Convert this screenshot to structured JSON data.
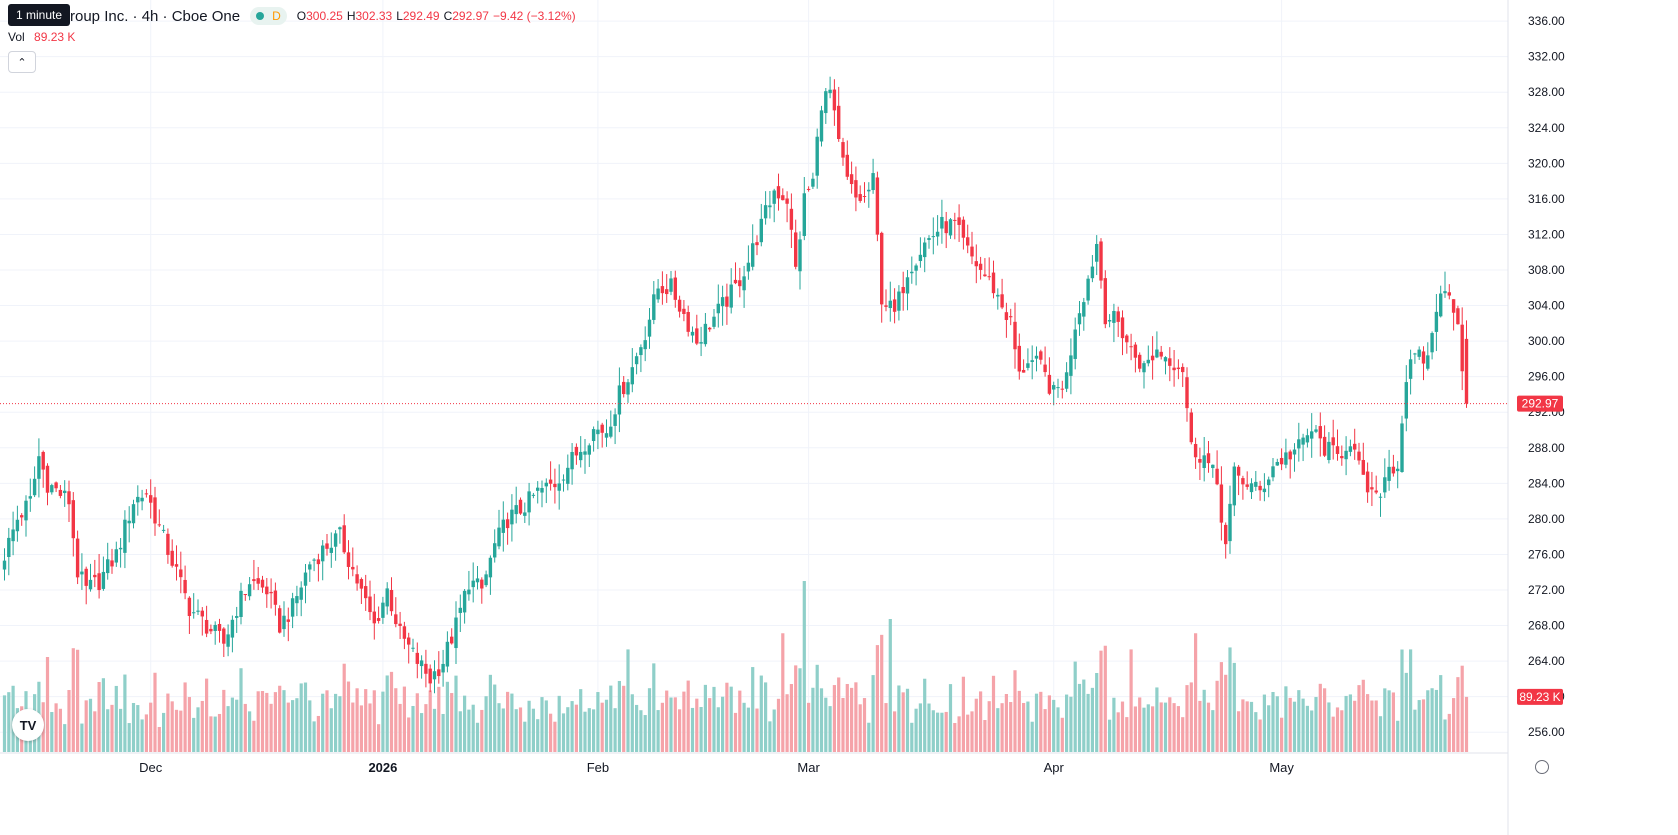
{
  "header": {
    "tooltip": "1 minute",
    "title": "roup Inc. · 4h · Cboe One",
    "interval_badge": "D",
    "ohlc": [
      {
        "key": "O",
        "value": "300.25"
      },
      {
        "key": "H",
        "value": "302.33"
      },
      {
        "key": "L",
        "value": "292.49"
      },
      {
        "key": "C",
        "value": "292.97"
      },
      {
        "key": "",
        "value": "−9.42 (−3.12%)"
      }
    ],
    "volume_label": "Vol",
    "volume_value": "89.23 K",
    "collapse_icon": "chevron-up-icon",
    "logo_text": "TV",
    "settings_icon": "gear-icon"
  },
  "colors": {
    "up": "#26a69a",
    "down": "#f23645",
    "up_volume": "#8fcfc9",
    "down_volume": "#f5a3a9",
    "grid": "#f0f3fa",
    "axis_text": "#131722"
  },
  "chart_data": {
    "type": "candlestick",
    "ylim": [
      254,
      337
    ],
    "y_ticks": [
      "336.00",
      "332.00",
      "328.00",
      "324.00",
      "320.00",
      "316.00",
      "312.00",
      "308.00",
      "304.00",
      "300.00",
      "296.00",
      "292.00",
      "288.00",
      "284.00",
      "280.00",
      "276.00",
      "272.00",
      "268.00",
      "264.00",
      "260.00",
      "256.00"
    ],
    "x_labels": [
      {
        "label": "Dec",
        "index": 34
      },
      {
        "label": "2026",
        "index": 88
      },
      {
        "label": "Feb",
        "index": 138
      },
      {
        "label": "Mar",
        "index": 187
      },
      {
        "label": "Apr",
        "index": 244
      },
      {
        "label": "May",
        "index": 297
      }
    ],
    "last_price": "292.97",
    "last_volume": "89.23 K",
    "anchors": [
      [
        0,
        276
      ],
      [
        3,
        280
      ],
      [
        6,
        282
      ],
      [
        8,
        287
      ],
      [
        10,
        284
      ],
      [
        15,
        282
      ],
      [
        17,
        274
      ],
      [
        19,
        272
      ],
      [
        22,
        273
      ],
      [
        26,
        276
      ],
      [
        30,
        282
      ],
      [
        33,
        283
      ],
      [
        36,
        279
      ],
      [
        40,
        274
      ],
      [
        43,
        270
      ],
      [
        47,
        268
      ],
      [
        51,
        266
      ],
      [
        54,
        270
      ],
      [
        57,
        273
      ],
      [
        61,
        272
      ],
      [
        64,
        268
      ],
      [
        67,
        270
      ],
      [
        71,
        275
      ],
      [
        75,
        277
      ],
      [
        78,
        278
      ],
      [
        82,
        273
      ],
      [
        86,
        268
      ],
      [
        89,
        272
      ],
      [
        92,
        267
      ],
      [
        96,
        264
      ],
      [
        99,
        262
      ],
      [
        102,
        264
      ],
      [
        105,
        268
      ],
      [
        108,
        273
      ],
      [
        111,
        272
      ],
      [
        114,
        277
      ],
      [
        117,
        280
      ],
      [
        120,
        281
      ],
      [
        124,
        283
      ],
      [
        128,
        284
      ],
      [
        131,
        286
      ],
      [
        134,
        288
      ],
      [
        137,
        290
      ],
      [
        140,
        290
      ],
      [
        143,
        294
      ],
      [
        146,
        297
      ],
      [
        149,
        301
      ],
      [
        152,
        306
      ],
      [
        155,
        306
      ],
      [
        158,
        303
      ],
      [
        161,
        300
      ],
      [
        164,
        302
      ],
      [
        167,
        304
      ],
      [
        170,
        306
      ],
      [
        173,
        309
      ],
      [
        176,
        313
      ],
      [
        179,
        317
      ],
      [
        182,
        316
      ],
      [
        184,
        308
      ],
      [
        186,
        316
      ],
      [
        188,
        318
      ],
      [
        190,
        327
      ],
      [
        192,
        328
      ],
      [
        194,
        322
      ],
      [
        196,
        318
      ],
      [
        198,
        316
      ],
      [
        200,
        316
      ],
      [
        202,
        318
      ],
      [
        204,
        305
      ],
      [
        207,
        303
      ],
      [
        210,
        308
      ],
      [
        214,
        311
      ],
      [
        218,
        313
      ],
      [
        221,
        313
      ],
      [
        224,
        310
      ],
      [
        227,
        308
      ],
      [
        230,
        306
      ],
      [
        232,
        304
      ],
      [
        234,
        302
      ],
      [
        236,
        296
      ],
      [
        238,
        298
      ],
      [
        241,
        297
      ],
      [
        244,
        294
      ],
      [
        247,
        296
      ],
      [
        249,
        302
      ],
      [
        252,
        307
      ],
      [
        254,
        311
      ],
      [
        256,
        303
      ],
      [
        259,
        302
      ],
      [
        262,
        299
      ],
      [
        265,
        297
      ],
      [
        268,
        299
      ],
      [
        271,
        298
      ],
      [
        274,
        297
      ],
      [
        276,
        288
      ],
      [
        279,
        287
      ],
      [
        282,
        284
      ],
      [
        284,
        277
      ],
      [
        286,
        285
      ],
      [
        289,
        284
      ],
      [
        292,
        283
      ],
      [
        295,
        286
      ],
      [
        298,
        287
      ],
      [
        301,
        288
      ],
      [
        304,
        290
      ],
      [
        307,
        288
      ],
      [
        310,
        287
      ],
      [
        313,
        289
      ],
      [
        316,
        284
      ],
      [
        319,
        282
      ],
      [
        322,
        286
      ],
      [
        324,
        286
      ],
      [
        326,
        296
      ],
      [
        328,
        298
      ],
      [
        331,
        298
      ],
      [
        333,
        304
      ],
      [
        336,
        306
      ],
      [
        338,
        302
      ],
      [
        340,
        293
      ]
    ],
    "volume_range": [
      0,
      200
    ]
  }
}
